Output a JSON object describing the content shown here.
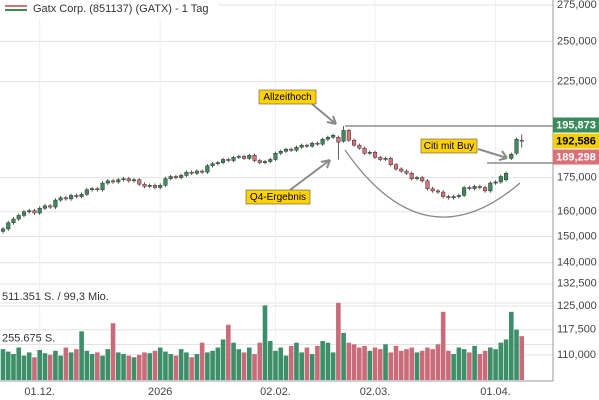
{
  "chart_data": {
    "type": "candlestick",
    "title": "Gatx Corp. (851137) (GATX) - 1 Tag",
    "log_scale": true,
    "grid": true,
    "up_color": "#3a8c5c",
    "down_color": "#d9707a",
    "volume_up_color": "#3d8f6a",
    "volume_down_color": "#c96b78",
    "ylim": [
      103000,
      278600
    ],
    "yticks": [
      {
        "value": 275000,
        "label": "275,000"
      },
      {
        "value": 250000,
        "label": "250,000"
      },
      {
        "value": 225000,
        "label": "225,000"
      },
      {
        "value": 175000,
        "label": "175,000"
      },
      {
        "value": 160000,
        "label": "160,000"
      },
      {
        "value": 150000,
        "label": "150,000"
      },
      {
        "value": 140000,
        "label": "140,000"
      },
      {
        "value": 132500,
        "label": "132,500"
      },
      {
        "value": 125000,
        "label": "125,000"
      },
      {
        "value": 117500,
        "label": "117,500"
      },
      {
        "value": 110000,
        "label": "110,000"
      }
    ],
    "volume_lim": [
      0,
      511351
    ],
    "volume_ticks": [
      {
        "value": 511351,
        "label": "511.351 S. / 99,3 Mio."
      },
      {
        "value": 255675,
        "label": "255.675 S."
      }
    ],
    "price_labels": [
      {
        "value": 195873,
        "label": "195,873",
        "color": "#3a8c5c",
        "text_color": "#ffffff"
      },
      {
        "value": 192586,
        "label": "192,586",
        "color": "#f5d000",
        "text_color": "#000000"
      },
      {
        "value": 189298,
        "label": "189,298",
        "color": "#d9707a",
        "text_color": "#ffffff"
      }
    ],
    "annotations": [
      "Allzeithoch",
      "Q4-Ergebnis",
      "Citi mit Buy"
    ],
    "categories": [
      null,
      null,
      null,
      null,
      null,
      null,
      null,
      "01.12.",
      null,
      null,
      null,
      null,
      null,
      null,
      null,
      null,
      null,
      null,
      null,
      null,
      null,
      null,
      null,
      null,
      null,
      null,
      null,
      null,
      null,
      null,
      "2026",
      null,
      null,
      null,
      null,
      null,
      null,
      null,
      null,
      null,
      null,
      null,
      null,
      null,
      null,
      null,
      null,
      null,
      null,
      null,
      null,
      null,
      "02.02.",
      null,
      null,
      null,
      null,
      null,
      null,
      null,
      null,
      null,
      null,
      null,
      null,
      null,
      null,
      null,
      null,
      null,
      null,
      "02.03.",
      null,
      null,
      null,
      null,
      null,
      null,
      null,
      null,
      null,
      null,
      null,
      null,
      null,
      null,
      null,
      null,
      null,
      null,
      null,
      null,
      null,
      null,
      "01.04.",
      null,
      null,
      null,
      null,
      null
    ],
    "ohlc": [
      [
        152000,
        153800,
        151200,
        153000
      ],
      [
        153000,
        156300,
        152200,
        155500
      ],
      [
        155500,
        157800,
        154700,
        157000
      ],
      [
        157000,
        159300,
        156200,
        158500
      ],
      [
        158500,
        160800,
        157700,
        160000
      ],
      [
        160000,
        161300,
        159200,
        160500
      ],
      [
        160500,
        161300,
        158700,
        159500
      ],
      [
        159500,
        162300,
        158700,
        161500
      ],
      [
        161500,
        163300,
        160700,
        162500
      ],
      [
        162500,
        163300,
        161200,
        162000
      ],
      [
        162000,
        165800,
        161200,
        165000
      ],
      [
        165000,
        166800,
        164200,
        166000
      ],
      [
        166000,
        166800,
        164700,
        165500
      ],
      [
        165500,
        167800,
        164700,
        167000
      ],
      [
        167000,
        167800,
        165700,
        166500
      ],
      [
        166500,
        168300,
        165700,
        167500
      ],
      [
        167500,
        170300,
        166700,
        169500
      ],
      [
        169500,
        170800,
        168700,
        170000
      ],
      [
        170000,
        170800,
        168700,
        169500
      ],
      [
        169500,
        173300,
        168700,
        172500
      ],
      [
        172500,
        174300,
        171700,
        173500
      ],
      [
        173500,
        174300,
        172200,
        173000
      ],
      [
        173000,
        174800,
        172200,
        174000
      ],
      [
        174000,
        175300,
        173200,
        174500
      ],
      [
        174500,
        175300,
        172700,
        173500
      ],
      [
        173500,
        174800,
        172700,
        174000
      ],
      [
        174000,
        174800,
        171200,
        172000
      ],
      [
        172000,
        172800,
        170200,
        171000
      ],
      [
        171000,
        172300,
        170200,
        171500
      ],
      [
        171500,
        172300,
        169700,
        170500
      ],
      [
        170500,
        172300,
        169700,
        171500
      ],
      [
        171500,
        175300,
        170700,
        174500
      ],
      [
        174500,
        176300,
        173700,
        175500
      ],
      [
        175500,
        176300,
        174200,
        175000
      ],
      [
        175000,
        176800,
        174200,
        176000
      ],
      [
        176000,
        178300,
        175200,
        177500
      ],
      [
        177500,
        178300,
        176200,
        177000
      ],
      [
        177000,
        178800,
        176200,
        178000
      ],
      [
        178000,
        178800,
        176700,
        177500
      ],
      [
        177500,
        181300,
        176700,
        180500
      ],
      [
        180500,
        182300,
        179700,
        181500
      ],
      [
        181500,
        182800,
        180700,
        182000
      ],
      [
        182000,
        184300,
        181200,
        183500
      ],
      [
        183500,
        184300,
        182200,
        183000
      ],
      [
        183000,
        185300,
        182200,
        184500
      ],
      [
        184500,
        185800,
        183700,
        185000
      ],
      [
        185000,
        185800,
        183200,
        184000
      ],
      [
        184000,
        186300,
        183200,
        185500
      ],
      [
        185500,
        186300,
        182200,
        183000
      ],
      [
        183000,
        183800,
        181200,
        182000
      ],
      [
        182000,
        183300,
        181200,
        182500
      ],
      [
        182500,
        184300,
        181700,
        183500
      ],
      [
        183500,
        187300,
        182700,
        186500
      ],
      [
        186500,
        188300,
        185700,
        187500
      ],
      [
        187500,
        189300,
        186700,
        188500
      ],
      [
        188500,
        189300,
        187200,
        188000
      ],
      [
        188000,
        190300,
        187200,
        189500
      ],
      [
        189500,
        191300,
        188700,
        190500
      ],
      [
        190500,
        191300,
        189200,
        190000
      ],
      [
        190000,
        192300,
        189200,
        191500
      ],
      [
        191500,
        192300,
        190200,
        191000
      ],
      [
        191000,
        194300,
        190200,
        193500
      ],
      [
        193500,
        195300,
        192700,
        194500
      ],
      [
        194500,
        196300,
        193700,
        195500
      ],
      [
        194500,
        195300,
        183500,
        192000
      ],
      [
        192500,
        200300,
        191700,
        198000
      ],
      [
        198000,
        198800,
        192200,
        193000
      ],
      [
        193000,
        193800,
        189700,
        190500
      ],
      [
        190500,
        191300,
        188200,
        189000
      ],
      [
        189000,
        189800,
        185700,
        186500
      ],
      [
        186500,
        187800,
        185700,
        187000
      ],
      [
        187000,
        187800,
        183700,
        184500
      ],
      [
        184500,
        185300,
        182700,
        183500
      ],
      [
        183500,
        184800,
        182700,
        184000
      ],
      [
        184000,
        184800,
        180200,
        181000
      ],
      [
        181000,
        181800,
        178200,
        179000
      ],
      [
        179000,
        179800,
        177200,
        178000
      ],
      [
        178000,
        178800,
        176200,
        177000
      ],
      [
        177000,
        177800,
        173700,
        174500
      ],
      [
        174500,
        175800,
        173700,
        175000
      ],
      [
        175000,
        175800,
        172700,
        173500
      ],
      [
        173500,
        174300,
        169200,
        170000
      ],
      [
        170000,
        170800,
        168200,
        169000
      ],
      [
        169000,
        169800,
        167700,
        168500
      ],
      [
        168500,
        169300,
        165700,
        166500
      ],
      [
        166500,
        167300,
        165200,
        166000
      ],
      [
        166000,
        167300,
        165200,
        166500
      ],
      [
        166500,
        167800,
        165700,
        167000
      ],
      [
        167000,
        171300,
        166200,
        170500
      ],
      [
        170500,
        171300,
        169200,
        170000
      ],
      [
        170000,
        171800,
        169200,
        171000
      ],
      [
        171000,
        171800,
        169700,
        170500
      ],
      [
        170500,
        171300,
        168200,
        169000
      ],
      [
        169000,
        173300,
        168200,
        172500
      ],
      [
        172500,
        173800,
        171700,
        173000
      ],
      [
        173000,
        176300,
        172200,
        175500
      ],
      [
        174000,
        177800,
        173200,
        177000
      ],
      [
        184000,
        186800,
        183200,
        186000
      ],
      [
        186500,
        194300,
        185700,
        193500
      ],
      [
        193000,
        195873,
        189298,
        192586
      ]
    ],
    "volume": [
      190000,
      175000,
      160000,
      200000,
      150000,
      170000,
      140000,
      185000,
      165000,
      155000,
      180000,
      150000,
      200000,
      170000,
      190000,
      300000,
      180000,
      160000,
      170000,
      150000,
      190000,
      350000,
      170000,
      160000,
      150000,
      140000,
      155000,
      170000,
      165000,
      180000,
      200000,
      175000,
      160000,
      150000,
      190000,
      170000,
      140000,
      160000,
      230000,
      170000,
      180000,
      200000,
      250000,
      340000,
      230000,
      190000,
      170000,
      200000,
      160000,
      230000,
      460000,
      240000,
      180000,
      200000,
      150000,
      210000,
      230000,
      170000,
      200000,
      160000,
      210000,
      240000,
      230000,
      170000,
      475000,
      290000,
      230000,
      220000,
      200000,
      210000,
      180000,
      200000,
      190000,
      220000,
      170000,
      210000,
      180000,
      190000,
      200000,
      170000,
      180000,
      200000,
      190000,
      220000,
      420000,
      180000,
      160000,
      200000,
      190000,
      170000,
      210000,
      160000,
      180000,
      200000,
      190000,
      230000,
      250000,
      420000,
      310000,
      270000
    ]
  }
}
